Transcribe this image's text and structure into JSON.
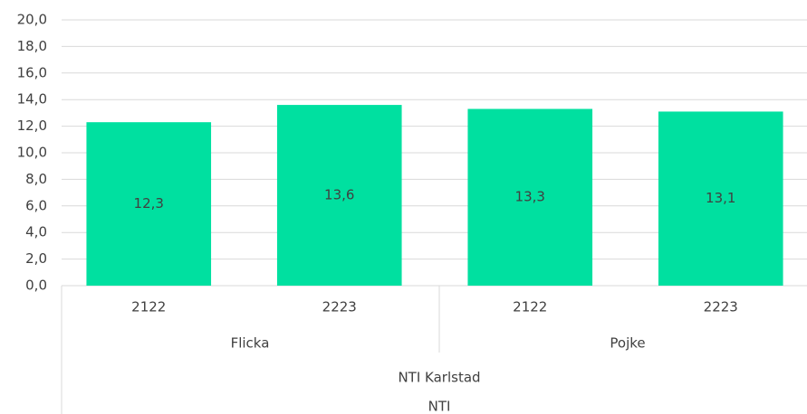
{
  "chart_data": {
    "type": "bar",
    "categories": [
      "2122",
      "2223",
      "2122",
      "2223"
    ],
    "groups": [
      "Flicka",
      "Pojke"
    ],
    "group_level2": "NTI Karlstad",
    "group_level3": "NTI",
    "values": [
      12.3,
      13.6,
      13.3,
      13.1
    ],
    "value_labels": [
      "12,3",
      "13,6",
      "13,3",
      "13,1"
    ],
    "color": "#00e0a0",
    "ylim": [
      0,
      20
    ],
    "yticks": [
      {
        "value": 0,
        "label": "0,0"
      },
      {
        "value": 2,
        "label": "2,0"
      },
      {
        "value": 4,
        "label": "4,0"
      },
      {
        "value": 6,
        "label": "6,0"
      },
      {
        "value": 8,
        "label": "8,0"
      },
      {
        "value": 10,
        "label": "10,0"
      },
      {
        "value": 12,
        "label": "12,0"
      },
      {
        "value": 14,
        "label": "14,0"
      },
      {
        "value": 16,
        "label": "16,0"
      },
      {
        "value": 18,
        "label": "18,0"
      },
      {
        "value": 20,
        "label": "20,0"
      }
    ],
    "grid": true
  }
}
